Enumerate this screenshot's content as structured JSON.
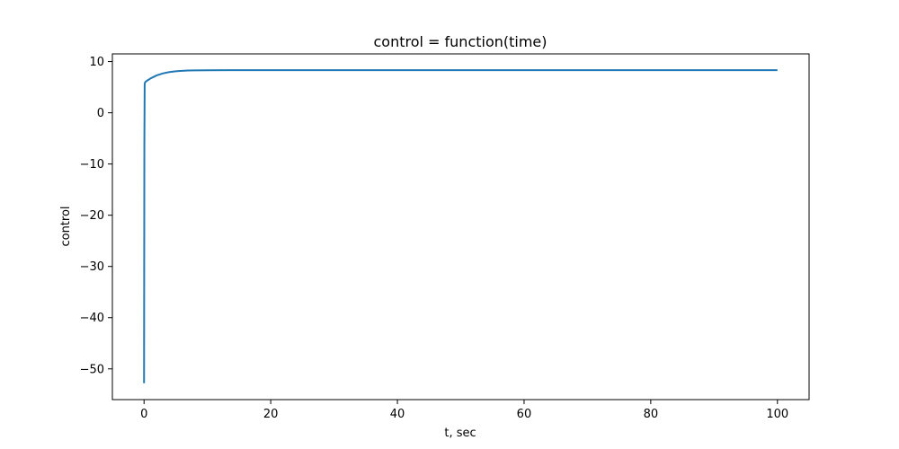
{
  "chart_data": {
    "type": "line",
    "title": "control = function(time)",
    "xlabel": "t, sec",
    "ylabel": "control",
    "xlim": [
      -5,
      105
    ],
    "ylim": [
      -56,
      11.5
    ],
    "xticks": [
      0,
      20,
      40,
      60,
      80,
      100
    ],
    "yticks": [
      10,
      0,
      -10,
      -20,
      -30,
      -40,
      -50
    ],
    "xtick_labels": [
      "0",
      "20",
      "40",
      "60",
      "80",
      "100"
    ],
    "ytick_labels": [
      "10",
      "0",
      "−10",
      "−20",
      "−30",
      "−40",
      "−50"
    ],
    "grid": false,
    "series": [
      {
        "color": "#1f77b4",
        "x": [
          0,
          0.05,
          0.1,
          0.15,
          0.2,
          0.3,
          0.5,
          0.8,
          1.0,
          1.5,
          2.0,
          2.5,
          3.0,
          4.0,
          5.0,
          6.0,
          7.0,
          8.0,
          10.0,
          15.0,
          20.0,
          30.0,
          40.0,
          50.0,
          60.0,
          70.0,
          80.0,
          90.0,
          100.0
        ],
        "y": [
          -52.8,
          -6.5,
          5.6,
          5.9,
          6.0,
          6.1,
          6.3,
          6.5,
          6.7,
          7.0,
          7.3,
          7.5,
          7.7,
          7.95,
          8.1,
          8.2,
          8.25,
          8.28,
          8.3,
          8.32,
          8.33,
          8.33,
          8.33,
          8.33,
          8.33,
          8.33,
          8.33,
          8.33,
          8.33
        ]
      }
    ]
  }
}
